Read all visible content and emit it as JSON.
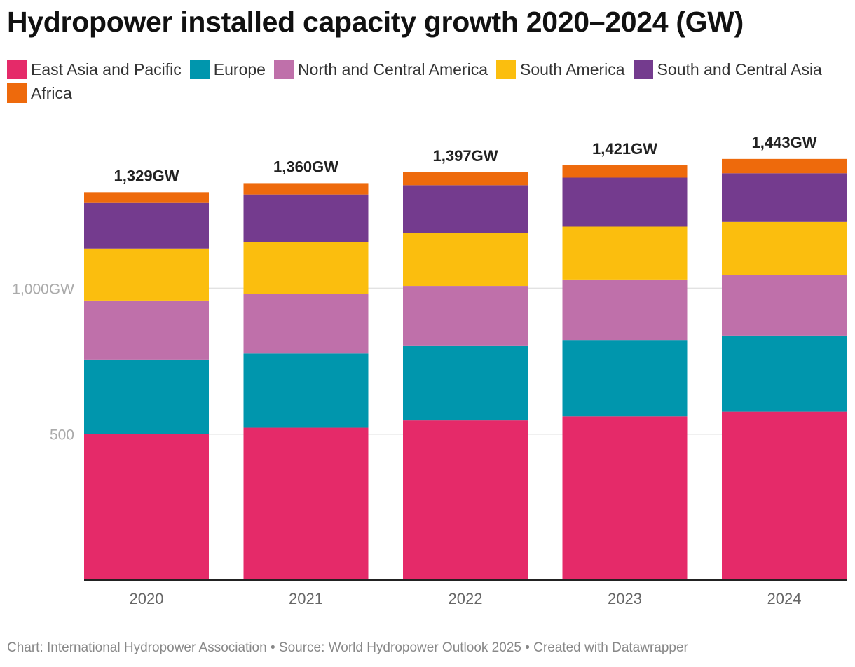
{
  "title": "Hydropower installed capacity growth 2020–2024 (GW)",
  "footer": "Chart: International Hydropower Association • Source: World Hydropower Outlook 2025 • Created with Datawrapper",
  "chart_data": {
    "type": "bar",
    "stacked": true,
    "categories": [
      "2020",
      "2021",
      "2022",
      "2023",
      "2024"
    ],
    "series": [
      {
        "name": "East Asia and Pacific",
        "color": "#e52a69",
        "values": [
          500,
          522,
          547,
          561,
          577
        ]
      },
      {
        "name": "Europe",
        "color": "#0096ad",
        "values": [
          254,
          255,
          255,
          262,
          261
        ]
      },
      {
        "name": "North and Central America",
        "color": "#bf70aa",
        "values": [
          204,
          204,
          206,
          207,
          207
        ]
      },
      {
        "name": "South America",
        "color": "#fbbe0e",
        "values": [
          178,
          178,
          181,
          181,
          182
        ]
      },
      {
        "name": "South and Central Asia",
        "color": "#743b8e",
        "values": [
          156,
          162,
          164,
          168,
          167
        ]
      },
      {
        "name": "Africa",
        "color": "#ee6a0c",
        "values": [
          37,
          39,
          44,
          42,
          49
        ]
      }
    ],
    "totals": [
      1329,
      1360,
      1397,
      1421,
      1443
    ],
    "total_labels": [
      "1,329GW",
      "1,360GW",
      "1,397GW",
      "1,421GW",
      "1,443GW"
    ],
    "y_ticks": [
      {
        "value": 500,
        "label": "500"
      },
      {
        "value": 1000,
        "label": "1,000GW"
      }
    ],
    "ylim": [
      0,
      1500
    ],
    "grid": true,
    "legend_position": "top"
  }
}
